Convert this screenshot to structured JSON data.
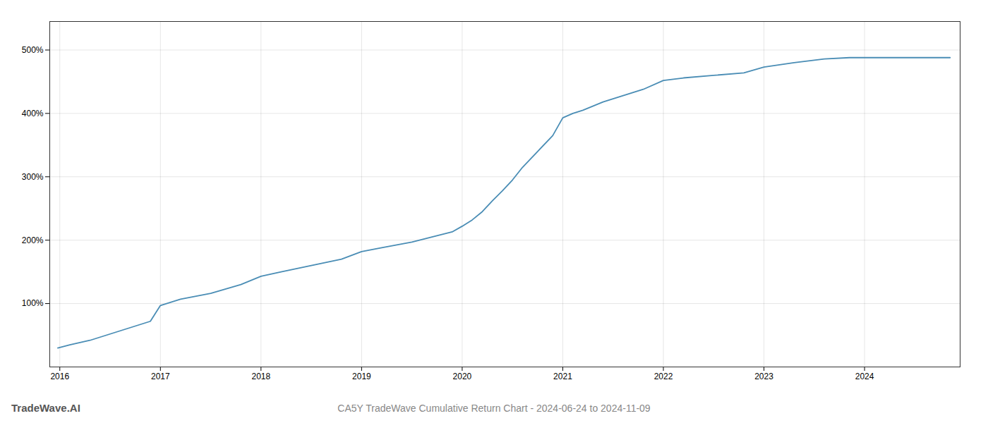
{
  "chart_data": {
    "type": "line",
    "title": "CA5Y TradeWave Cumulative Return Chart - 2024-06-24 to 2024-11-09",
    "annotations": [
      "TradeWave.AI"
    ],
    "x": [
      2015.98,
      2016.1,
      2016.3,
      2016.5,
      2016.7,
      2016.9,
      2017.0,
      2017.2,
      2017.5,
      2017.8,
      2018.0,
      2018.2,
      2018.5,
      2018.8,
      2019.0,
      2019.2,
      2019.5,
      2019.7,
      2019.9,
      2020.0,
      2020.1,
      2020.2,
      2020.3,
      2020.4,
      2020.5,
      2020.6,
      2020.75,
      2020.9,
      2021.0,
      2021.1,
      2021.2,
      2021.4,
      2021.6,
      2021.8,
      2022.0,
      2022.2,
      2022.5,
      2022.8,
      2023.0,
      2023.3,
      2023.6,
      2023.85,
      2024.0,
      2024.3,
      2024.6,
      2024.85
    ],
    "values": [
      30,
      35,
      42,
      52,
      62,
      72,
      97,
      107,
      116,
      130,
      143,
      150,
      160,
      170,
      182,
      188,
      197,
      205,
      213,
      222,
      232,
      245,
      262,
      278,
      295,
      315,
      340,
      365,
      393,
      400,
      405,
      418,
      428,
      438,
      452,
      456,
      460,
      464,
      473,
      480,
      486,
      488,
      488,
      488,
      488,
      488
    ],
    "color": "#4a8db5",
    "xlim": [
      2015.9,
      2024.95
    ],
    "ylim": [
      0,
      545
    ],
    "xticks": [
      2016,
      2017,
      2018,
      2019,
      2020,
      2021,
      2022,
      2023,
      2024
    ],
    "yticks": [
      {
        "value": 100,
        "label": "100%"
      },
      {
        "value": 200,
        "label": "200%"
      },
      {
        "value": 300,
        "label": "300%"
      },
      {
        "value": 400,
        "label": "400%"
      },
      {
        "value": 500,
        "label": "500%"
      }
    ],
    "grid": true
  }
}
